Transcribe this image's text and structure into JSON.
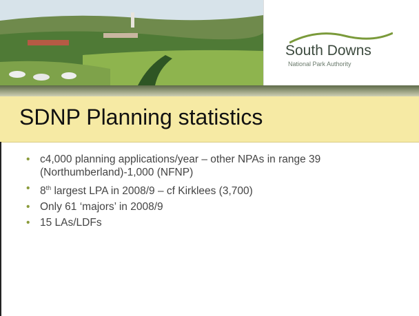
{
  "logo": {
    "name": "South Downs",
    "subtitle": "National Park Authority"
  },
  "title": "SDNP Planning statistics",
  "bullets": [
    {
      "text": "c4,000 planning applications/year – other NPAs in range 39 (Northumberland)-1,000 (NFNP)"
    },
    {
      "before": "8",
      "superscript": "th",
      "after": " largest LPA in 2008/9 – cf Kirklees (3,700)"
    },
    {
      "text": "Only 61 ‘majors’ in 2008/9"
    },
    {
      "text": "15 LAs/LDFs"
    }
  ]
}
